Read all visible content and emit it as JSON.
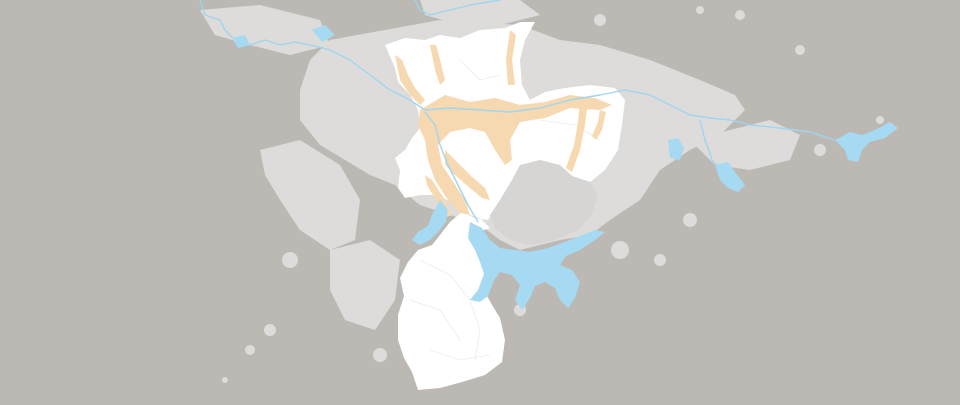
{
  "map": {
    "colors": {
      "background": "#bcb9b4",
      "urban_area": "#dddcda",
      "municipality": "#ffffff",
      "floodplain": "#f6d9b0",
      "water": "#a6daf2",
      "river_line": "#9fd5ef",
      "district_border": "#ececec"
    },
    "layers": [
      "urban-area",
      "municipality",
      "floodplain",
      "water",
      "rivers"
    ],
    "labels": []
  }
}
